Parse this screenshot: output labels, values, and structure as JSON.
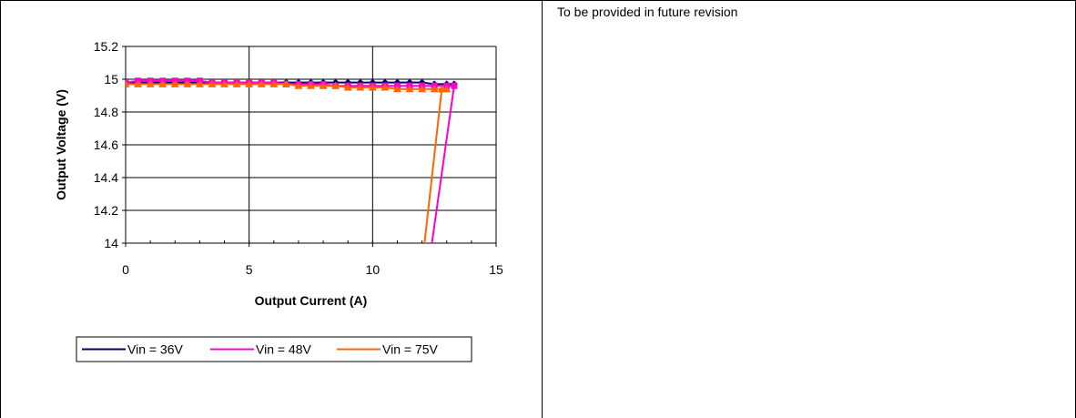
{
  "right_cell": {
    "note": "To be provided in future revision"
  },
  "chart_data": {
    "type": "line",
    "title": "",
    "xlabel": "Output Current (A)",
    "ylabel": "Output Voltage (V)",
    "xlim": [
      0,
      15
    ],
    "ylim": [
      14,
      15.2
    ],
    "x_ticks": [
      0,
      5,
      10,
      15
    ],
    "x_tick_labels": [
      "0",
      "5",
      "10",
      "15"
    ],
    "y_ticks": [
      14,
      14.2,
      14.4,
      14.6,
      14.8,
      15,
      15.2
    ],
    "y_tick_labels": [
      "14",
      "14.2",
      "14.4",
      "14.6",
      "14.8",
      "15",
      "15.2"
    ],
    "grid": true,
    "legend_position": "bottom",
    "series": [
      {
        "name": "Vin = 36V",
        "color": "#000066",
        "marker": "diamond",
        "x": [
          0,
          0.5,
          1,
          1.5,
          2,
          2.5,
          3,
          3.5,
          4,
          4.5,
          5,
          5.5,
          6,
          6.5,
          7,
          7.5,
          8,
          8.5,
          9,
          9.5,
          10,
          10.5,
          11,
          11.5,
          12,
          12.5,
          13,
          13.3
        ],
        "y": [
          14.98,
          14.98,
          14.98,
          14.98,
          14.98,
          14.98,
          14.98,
          14.98,
          14.98,
          14.98,
          14.98,
          14.98,
          14.98,
          14.98,
          14.98,
          14.98,
          14.98,
          14.98,
          14.98,
          14.98,
          14.98,
          14.98,
          14.98,
          14.98,
          14.98,
          14.97,
          14.97,
          14.97
        ]
      },
      {
        "name": "Vin = 48V",
        "color": "#ff00cc",
        "marker": "square",
        "x": [
          0,
          0.5,
          1,
          1.5,
          2,
          2.5,
          3,
          3.5,
          4,
          4.5,
          5,
          5.5,
          6,
          6.5,
          7,
          7.5,
          8,
          8.5,
          9,
          9.5,
          10,
          10.5,
          11,
          11.5,
          12,
          12.5,
          13,
          13.3,
          12.4
        ],
        "y": [
          14.98,
          14.99,
          14.99,
          14.99,
          14.99,
          14.99,
          14.99,
          14.98,
          14.98,
          14.98,
          14.98,
          14.98,
          14.98,
          14.97,
          14.97,
          14.97,
          14.97,
          14.96,
          14.96,
          14.96,
          14.96,
          14.96,
          14.96,
          14.96,
          14.96,
          14.96,
          14.96,
          14.96,
          14.0
        ]
      },
      {
        "name": "Vin = 75V",
        "color": "#ff6600",
        "marker": "triangle",
        "x": [
          0,
          0.5,
          1,
          1.5,
          2,
          2.5,
          3,
          3.5,
          4,
          4.5,
          5,
          5.5,
          6,
          6.5,
          7,
          7.5,
          8,
          8.5,
          9,
          9.5,
          10,
          10.5,
          11,
          11.5,
          12,
          12.5,
          13,
          12.8,
          12.1
        ],
        "y": [
          14.97,
          14.97,
          14.97,
          14.97,
          14.97,
          14.97,
          14.97,
          14.97,
          14.97,
          14.97,
          14.97,
          14.97,
          14.97,
          14.97,
          14.96,
          14.96,
          14.96,
          14.96,
          14.95,
          14.95,
          14.95,
          14.95,
          14.94,
          14.94,
          14.94,
          14.94,
          14.94,
          14.94,
          14.0
        ]
      }
    ]
  }
}
